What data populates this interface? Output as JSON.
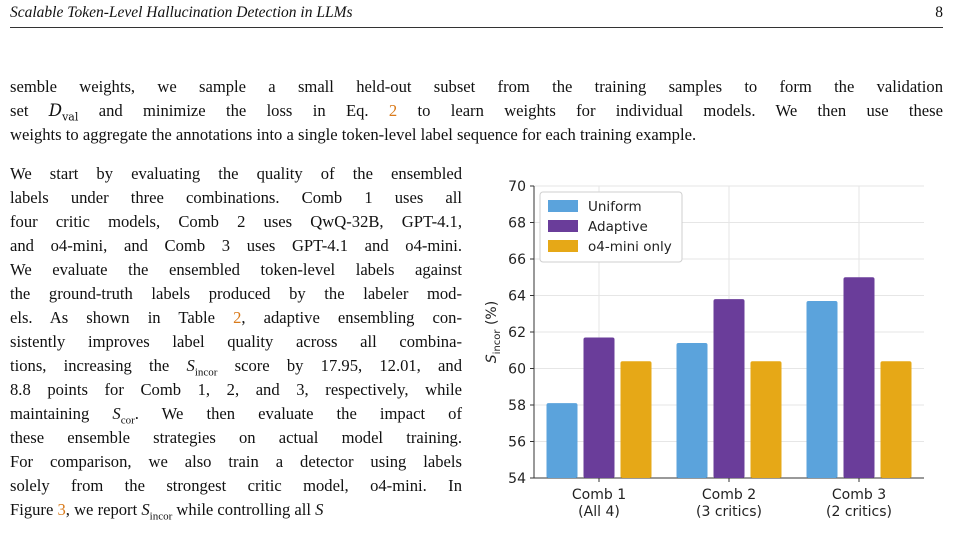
{
  "header": {
    "running_title": "Scalable Token-Level Hallucination Detection in LLMs",
    "page_number": "8"
  },
  "intro_lines": [
    "semble weights, we sample a small held-out subset from the training samples to form the validation",
    "and minimize the loss in Eq.",
    "to learn weights for individual models.  We then use these",
    "weights to aggregate the annotations into a single token-level label sequence for each training example."
  ],
  "body_lines": [
    "We start by evaluating the quality of the ensembled",
    "labels under three combinations.  Comb 1 uses all",
    "four critic models, Comb 2 uses QwQ-32B, GPT-4.1,",
    "and o4-mini, and Comb 3 uses GPT-4.1 and o4-mini.",
    "We evaluate the ensembled token-level labels against",
    "the ground-truth labels produced by the labeler mod-",
    "els. As shown in Table",
    ", adaptive ensembling con-",
    "sistently improves label quality across all combina-",
    "tions, increasing the",
    "score by 17.95, 12.01, and",
    "8.8 points for Comb 1, 2, and 3, respectively, while",
    "maintaining",
    ". We then evaluate the impact of",
    "these ensemble strategies on actual model training.",
    "For comparison, we also train a detector using labels",
    "solely from the strongest critic model, o4-mini.  In",
    "Figure",
    ", we report",
    "while controlling all"
  ],
  "refs": {
    "eq": "2",
    "table": "2",
    "figure": "3"
  },
  "math": {
    "set_word": "set",
    "D": "D",
    "val": "val",
    "S": "S",
    "incor": "incor",
    "cor": "cor"
  },
  "chart_data": {
    "type": "bar",
    "categories": [
      [
        "Comb 1",
        "(All 4)"
      ],
      [
        "Comb 2",
        "(3 critics)"
      ],
      [
        "Comb 3",
        "(2 critics)"
      ]
    ],
    "series": [
      {
        "name": "Uniform",
        "values": [
          58.1,
          61.4,
          63.7
        ],
        "color": "#5ba3dc"
      },
      {
        "name": "Adaptive",
        "values": [
          61.7,
          63.8,
          65.0
        ],
        "color": "#6a3d9a"
      },
      {
        "name": "o4-mini only",
        "values": [
          60.4,
          60.4,
          60.4
        ],
        "color": "#e6a817"
      }
    ],
    "ylabel_main": "S",
    "ylabel_sub": "incor",
    "ylabel_unit": " (%)",
    "yticks": [
      54,
      56,
      58,
      60,
      62,
      64,
      66,
      68,
      70
    ],
    "ylim": [
      54,
      70
    ],
    "grid": true,
    "legend_position": "top-left"
  }
}
